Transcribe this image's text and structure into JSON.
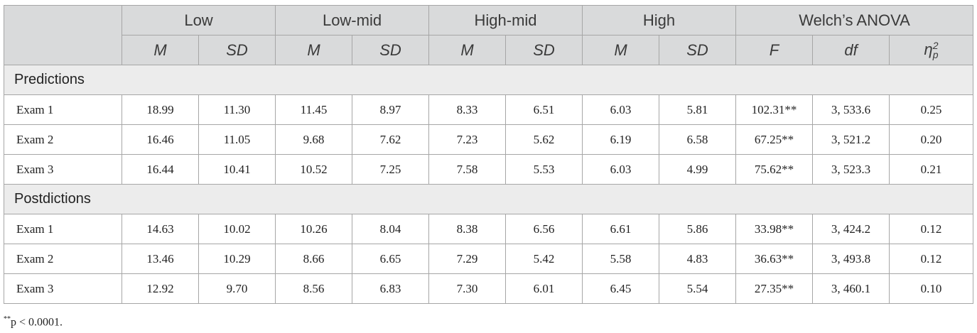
{
  "table": {
    "groups": [
      {
        "label": "Low",
        "span": 2
      },
      {
        "label": "Low-mid",
        "span": 2
      },
      {
        "label": "High-mid",
        "span": 2
      },
      {
        "label": "High",
        "span": 2
      },
      {
        "label": "Welch’s ANOVA",
        "span": 3
      }
    ],
    "subheaders": [
      "M",
      "SD",
      "M",
      "SD",
      "M",
      "SD",
      "M",
      "SD",
      "F",
      "df",
      {
        "symbol": "η",
        "sub": "p",
        "sup": "2"
      }
    ],
    "sections": [
      {
        "label": "Predictions",
        "rows": [
          {
            "label": "Exam 1",
            "cells": [
              "18.99",
              "11.30",
              "11.45",
              "8.97",
              "8.33",
              "6.51",
              "6.03",
              "5.81",
              "102.31**",
              "3, 533.6",
              "0.25"
            ]
          },
          {
            "label": "Exam 2",
            "cells": [
              "16.46",
              "11.05",
              "9.68",
              "7.62",
              "7.23",
              "5.62",
              "6.19",
              "6.58",
              "67.25**",
              "3, 521.2",
              "0.20"
            ]
          },
          {
            "label": "Exam 3",
            "cells": [
              "16.44",
              "10.41",
              "10.52",
              "7.25",
              "7.58",
              "5.53",
              "6.03",
              "4.99",
              "75.62**",
              "3, 523.3",
              "0.21"
            ]
          }
        ]
      },
      {
        "label": "Postdictions",
        "rows": [
          {
            "label": "Exam 1",
            "cells": [
              "14.63",
              "10.02",
              "10.26",
              "8.04",
              "8.38",
              "6.56",
              "6.61",
              "5.86",
              "33.98**",
              "3, 424.2",
              "0.12"
            ]
          },
          {
            "label": "Exam 2",
            "cells": [
              "13.46",
              "10.29",
              "8.66",
              "6.65",
              "7.29",
              "5.42",
              "5.58",
              "4.83",
              "36.63**",
              "3, 493.8",
              "0.12"
            ]
          },
          {
            "label": "Exam 3",
            "cells": [
              "12.92",
              "9.70",
              "8.56",
              "6.83",
              "7.30",
              "6.01",
              "6.45",
              "5.54",
              "27.35**",
              "3, 460.1",
              "0.10"
            ]
          }
        ]
      }
    ]
  },
  "footnote": {
    "marker": "**",
    "text": "p < 0.0001."
  }
}
